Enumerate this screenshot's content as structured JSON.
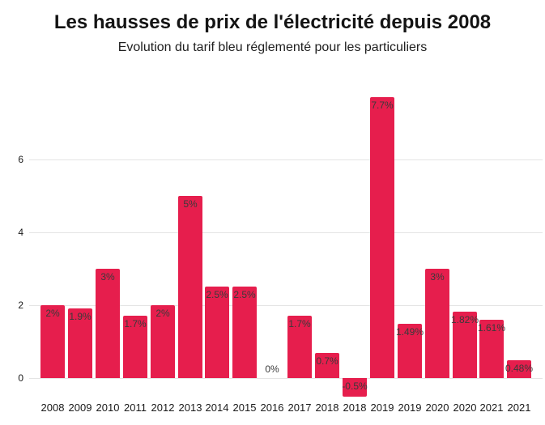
{
  "header": {
    "title": "Les hausses de prix de l'électricité depuis 2008",
    "subtitle": "Evolution du tarif bleu réglementé pour les particuliers"
  },
  "colors": {
    "bar": "#e61e4d",
    "grid": "#e4e4e4",
    "axis_text": "#1a1a1a",
    "value_label": "#3a3a3a",
    "title_text": "#141414",
    "subtitle_text": "#202020",
    "background": "#ffffff"
  },
  "chart_data": {
    "type": "bar",
    "title": "Les hausses de prix de l'électricité depuis 2008",
    "subtitle": "Evolution du tarif bleu réglementé pour les particuliers",
    "categories": [
      "2008",
      "2009",
      "2010",
      "2011",
      "2012",
      "2013",
      "2014",
      "2015",
      "2016",
      "2017",
      "2018",
      "2018",
      "2019",
      "2019",
      "2020",
      "2020",
      "2021",
      "2021"
    ],
    "values": [
      2,
      1.9,
      3,
      1.7,
      2,
      5,
      2.5,
      2.5,
      0,
      1.7,
      0.7,
      -0.5,
      7.7,
      1.49,
      3,
      1.82,
      1.61,
      0.48
    ],
    "value_labels": [
      "2%",
      "1.9%",
      "3%",
      "1.7%",
      "2%",
      "5%",
      "2.5%",
      "2.5%",
      "0%",
      "1.7%",
      "0.7%",
      "-0.5%",
      "7.7%",
      "1.49%",
      "3%",
      "1.82%",
      "1.61%",
      "0.48%"
    ],
    "xlabel": "",
    "ylabel": "",
    "yticks": [
      0,
      2,
      4,
      6
    ],
    "ylim": [
      -0.6,
      7.9
    ],
    "grid": true,
    "legend": "none",
    "unit": "%"
  }
}
